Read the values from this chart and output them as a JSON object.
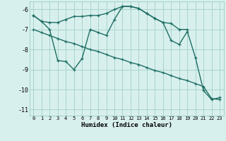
{
  "xlabel": "Humidex (Indice chaleur)",
  "background_color": "#d8f0ed",
  "grid_color": "#a8d4ce",
  "line_color": "#1e6e64",
  "xlim": [
    -0.5,
    23.5
  ],
  "ylim": [
    -11.3,
    -5.6
  ],
  "yticks": [
    -11,
    -10,
    -9,
    -8,
    -7,
    -6
  ],
  "xticks": [
    0,
    1,
    2,
    3,
    4,
    5,
    6,
    7,
    8,
    9,
    10,
    11,
    12,
    13,
    14,
    15,
    16,
    17,
    18,
    19,
    20,
    21,
    22,
    23
  ],
  "line1_x": [
    0,
    1,
    2,
    3,
    4,
    5,
    6,
    7,
    8,
    9,
    10,
    11,
    12,
    13,
    14,
    15,
    16,
    17,
    18,
    19
  ],
  "line1_y": [
    -6.3,
    -6.6,
    -6.65,
    -6.65,
    -6.5,
    -6.35,
    -6.35,
    -6.3,
    -6.3,
    -6.2,
    -6.0,
    -5.85,
    -5.85,
    -5.95,
    -6.2,
    -6.45,
    -6.65,
    -6.7,
    -7.0,
    -7.0
  ],
  "line2_x": [
    0,
    1,
    2,
    3,
    4,
    5,
    6,
    7,
    8,
    9,
    10,
    11,
    12,
    13,
    14,
    15,
    16,
    17,
    18,
    19,
    20,
    21,
    22,
    23
  ],
  "line2_y": [
    -6.3,
    -6.6,
    -7.0,
    -8.55,
    -8.6,
    -9.0,
    -8.45,
    -7.0,
    -7.15,
    -7.3,
    -6.5,
    -5.85,
    -5.85,
    -5.95,
    -6.2,
    -6.45,
    -6.65,
    -7.55,
    -7.75,
    -7.1,
    -8.4,
    -10.05,
    -10.5,
    -10.4
  ],
  "line3_x": [
    0,
    1,
    2,
    3,
    4,
    5,
    6,
    7,
    8,
    9,
    10,
    11,
    12,
    13,
    14,
    15,
    16,
    17,
    18,
    19,
    20,
    21,
    22,
    23
  ],
  "line3_y": [
    -7.0,
    -7.15,
    -7.3,
    -7.45,
    -7.6,
    -7.7,
    -7.85,
    -8.0,
    -8.1,
    -8.25,
    -8.4,
    -8.5,
    -8.65,
    -8.75,
    -8.9,
    -9.05,
    -9.15,
    -9.3,
    -9.45,
    -9.55,
    -9.7,
    -9.85,
    -10.45,
    -10.5
  ]
}
